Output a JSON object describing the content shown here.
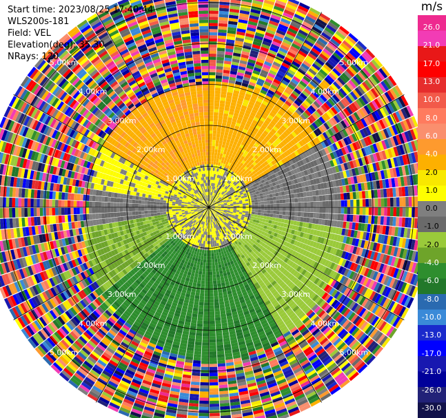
{
  "info": {
    "start_time": "Start time: 2023/08/25 17:40:44",
    "site": "WLS200s-181",
    "field": "Field: VEL",
    "elevation": "Elevation(deg): 35.30",
    "nrays": "NRays: 120"
  },
  "chart_data": {
    "type": "ppi",
    "field": "VEL",
    "units": "m/s",
    "nrays": 120,
    "range_rings_km": [
      1,
      2,
      3,
      4,
      5
    ],
    "range_ring_labels": [
      "1.00km",
      "2.00km",
      "3.00km",
      "4.00km",
      "5.00km"
    ],
    "max_range_km": 5.5,
    "spokes_deg": [
      0,
      30,
      60,
      90,
      120,
      150,
      180,
      210,
      240,
      270,
      300,
      330
    ],
    "pattern": {
      "clean_range_km": {
        "north": 3.0,
        "east": 3.2,
        "south": 3.8,
        "west": 2.9
      },
      "sectors": [
        {
          "from_deg": 300,
          "to_deg": 360,
          "velocity_ms": 9
        },
        {
          "from_deg": 0,
          "to_deg": 60,
          "velocity_ms": 8
        },
        {
          "from_deg": 60,
          "to_deg": 100,
          "velocity_ms": 0
        },
        {
          "from_deg": 100,
          "to_deg": 150,
          "velocity_ms": -4
        },
        {
          "from_deg": 150,
          "to_deg": 230,
          "velocity_ms": -9
        },
        {
          "from_deg": 230,
          "to_deg": 260,
          "velocity_ms": -5
        },
        {
          "from_deg": 260,
          "to_deg": 280,
          "velocity_ms": 0
        },
        {
          "from_deg": 280,
          "to_deg": 300,
          "velocity_ms": 3
        }
      ],
      "near_range_velocity_ms": 2.5
    },
    "colorbar": {
      "label": "m/s",
      "ticks": [
        "26.0",
        "21.0",
        "17.0",
        "13.0",
        "10.0",
        "8.0",
        "6.0",
        "4.0",
        "2.0",
        "1.0",
        "0.0",
        "-1.0",
        "-2.0",
        "-4.0",
        "-6.0",
        "-8.0",
        "-10.0",
        "-13.0",
        "-17.0",
        "-21.0",
        "-26.0",
        "-30.0"
      ],
      "colors": [
        "#ee2a8f",
        "#f23cb5",
        "#e81818",
        "#fe0000",
        "#e62d2d",
        "#f25a4a",
        "#ff7b5e",
        "#fa8f6e",
        "#fe9a2e",
        "#fdb000",
        "#f8e800",
        "#fefe00",
        "#7f7f7f",
        "#6a6a6a",
        "#9aca3a",
        "#6ea42a",
        "#2e8e2e",
        "#22782a",
        "#2a6ab0",
        "#3a8ad8",
        "#1a2acc",
        "#0000ff",
        "#1818b0",
        "#00009a",
        "#222278",
        "#12124a"
      ]
    }
  }
}
